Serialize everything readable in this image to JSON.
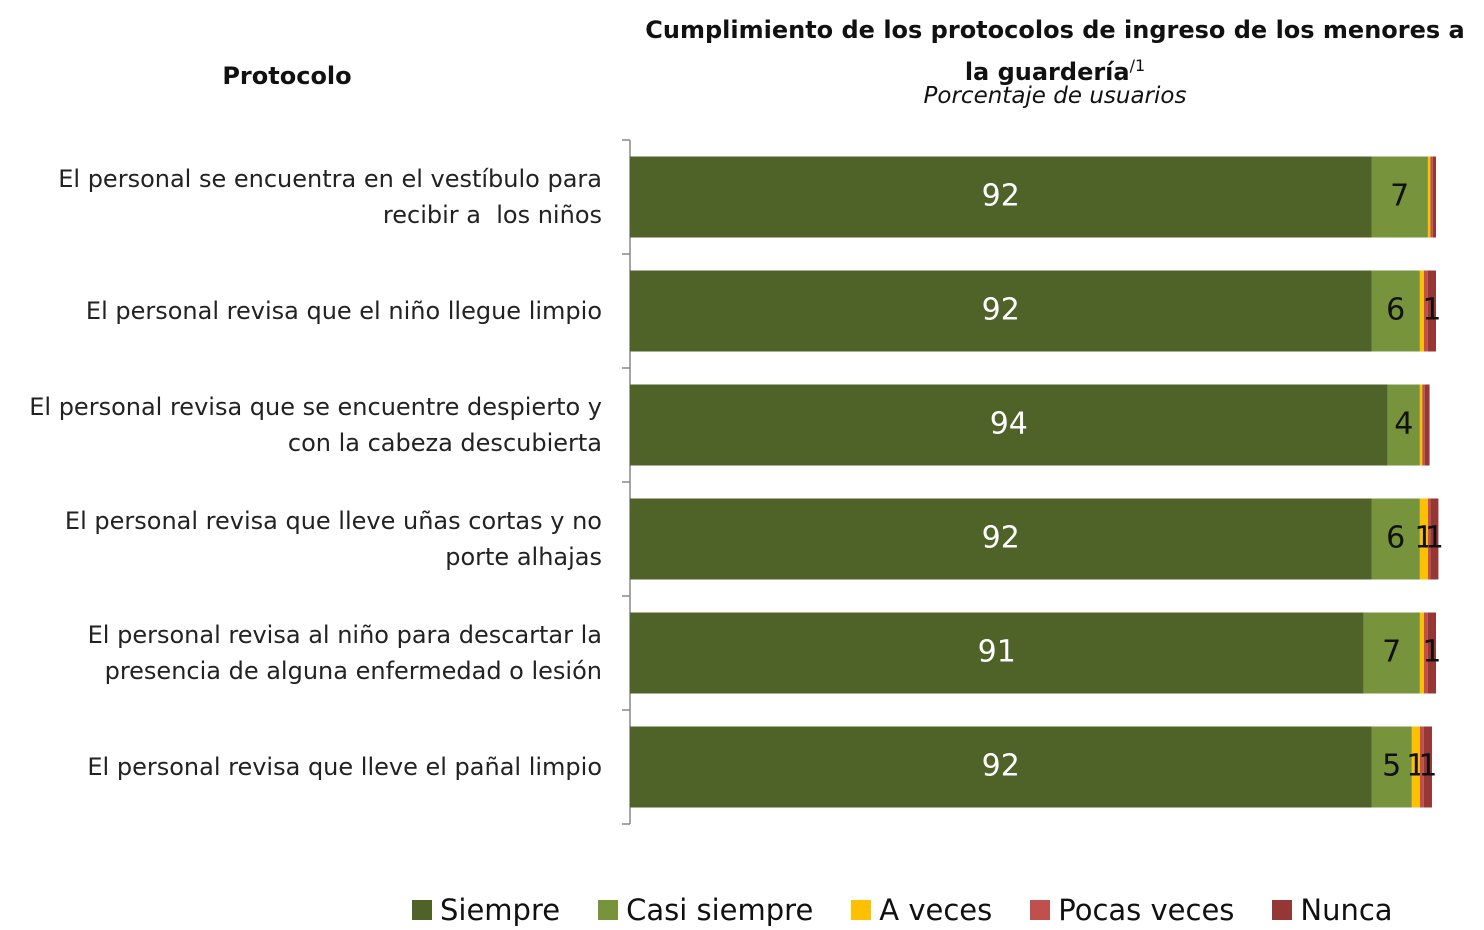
{
  "chart_data": {
    "type": "stacked_barh",
    "title": "Cumplimiento de los protocolos de ingreso de los menores a la guardería",
    "title_note": "/1",
    "subtitle": "Porcentaje de usuarios",
    "y_label": "Protocolo",
    "categories": [
      "El personal se encuentra en el vestíbulo para recibir a  los niños",
      "El personal revisa que el niño llegue limpio",
      "El personal revisa que se encuentre despierto y con la cabeza descubierta",
      "El personal revisa que lleve uñas cortas y no porte alhajas",
      "El personal revisa al niño para descartar la presencia de alguna enfermedad o lesión",
      "El personal revisa que lleve el pañal limpio"
    ],
    "series": [
      {
        "name": "Siempre",
        "color": "#4f6228",
        "values": [
          92,
          92,
          94,
          92,
          91,
          92
        ]
      },
      {
        "name": "Casi siempre",
        "color": "#77933c",
        "values": [
          7,
          6,
          4,
          6,
          7,
          5
        ]
      },
      {
        "name": "A veces",
        "color": "#ffc000",
        "values": [
          0.3,
          0.5,
          0.3,
          1,
          0.5,
          1
        ]
      },
      {
        "name": "Pocas veces",
        "color": "#c0504d",
        "values": [
          0.3,
          0.5,
          0.3,
          0.3,
          0.5,
          0.5
        ]
      },
      {
        "name": "Nunca",
        "color": "#953735",
        "values": [
          0.4,
          1,
          0.6,
          1,
          1,
          1
        ]
      }
    ],
    "xlim": [
      0,
      100
    ]
  }
}
